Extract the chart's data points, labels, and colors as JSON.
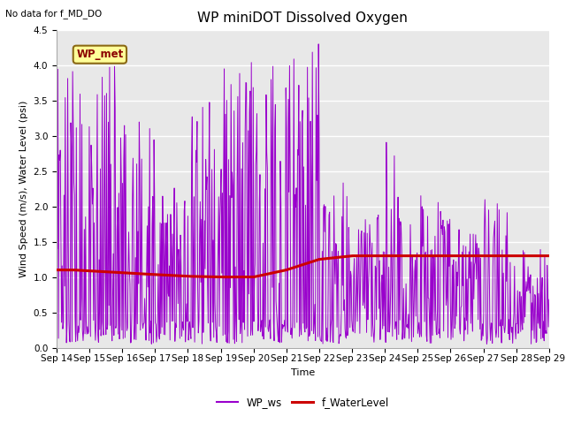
{
  "title": "WP miniDOT Dissolved Oxygen",
  "top_left_text": "No data for f_MD_DO",
  "ylabel": "Wind Speed (m/s), Water Level (psi)",
  "xlabel": "Time",
  "ylim": [
    0.0,
    4.5
  ],
  "yticks": [
    0.0,
    0.5,
    1.0,
    1.5,
    2.0,
    2.5,
    3.0,
    3.5,
    4.0,
    4.5
  ],
  "legend_box_text": "WP_met",
  "legend_box_color": "#ffff99",
  "legend_box_edge": "#8B6914",
  "ws_color": "#9900cc",
  "wl_color": "#cc0000",
  "background_color": "#e8e8e8",
  "grid_color": "#ffffff",
  "title_fontsize": 11,
  "label_fontsize": 8,
  "tick_fontsize": 7.5
}
